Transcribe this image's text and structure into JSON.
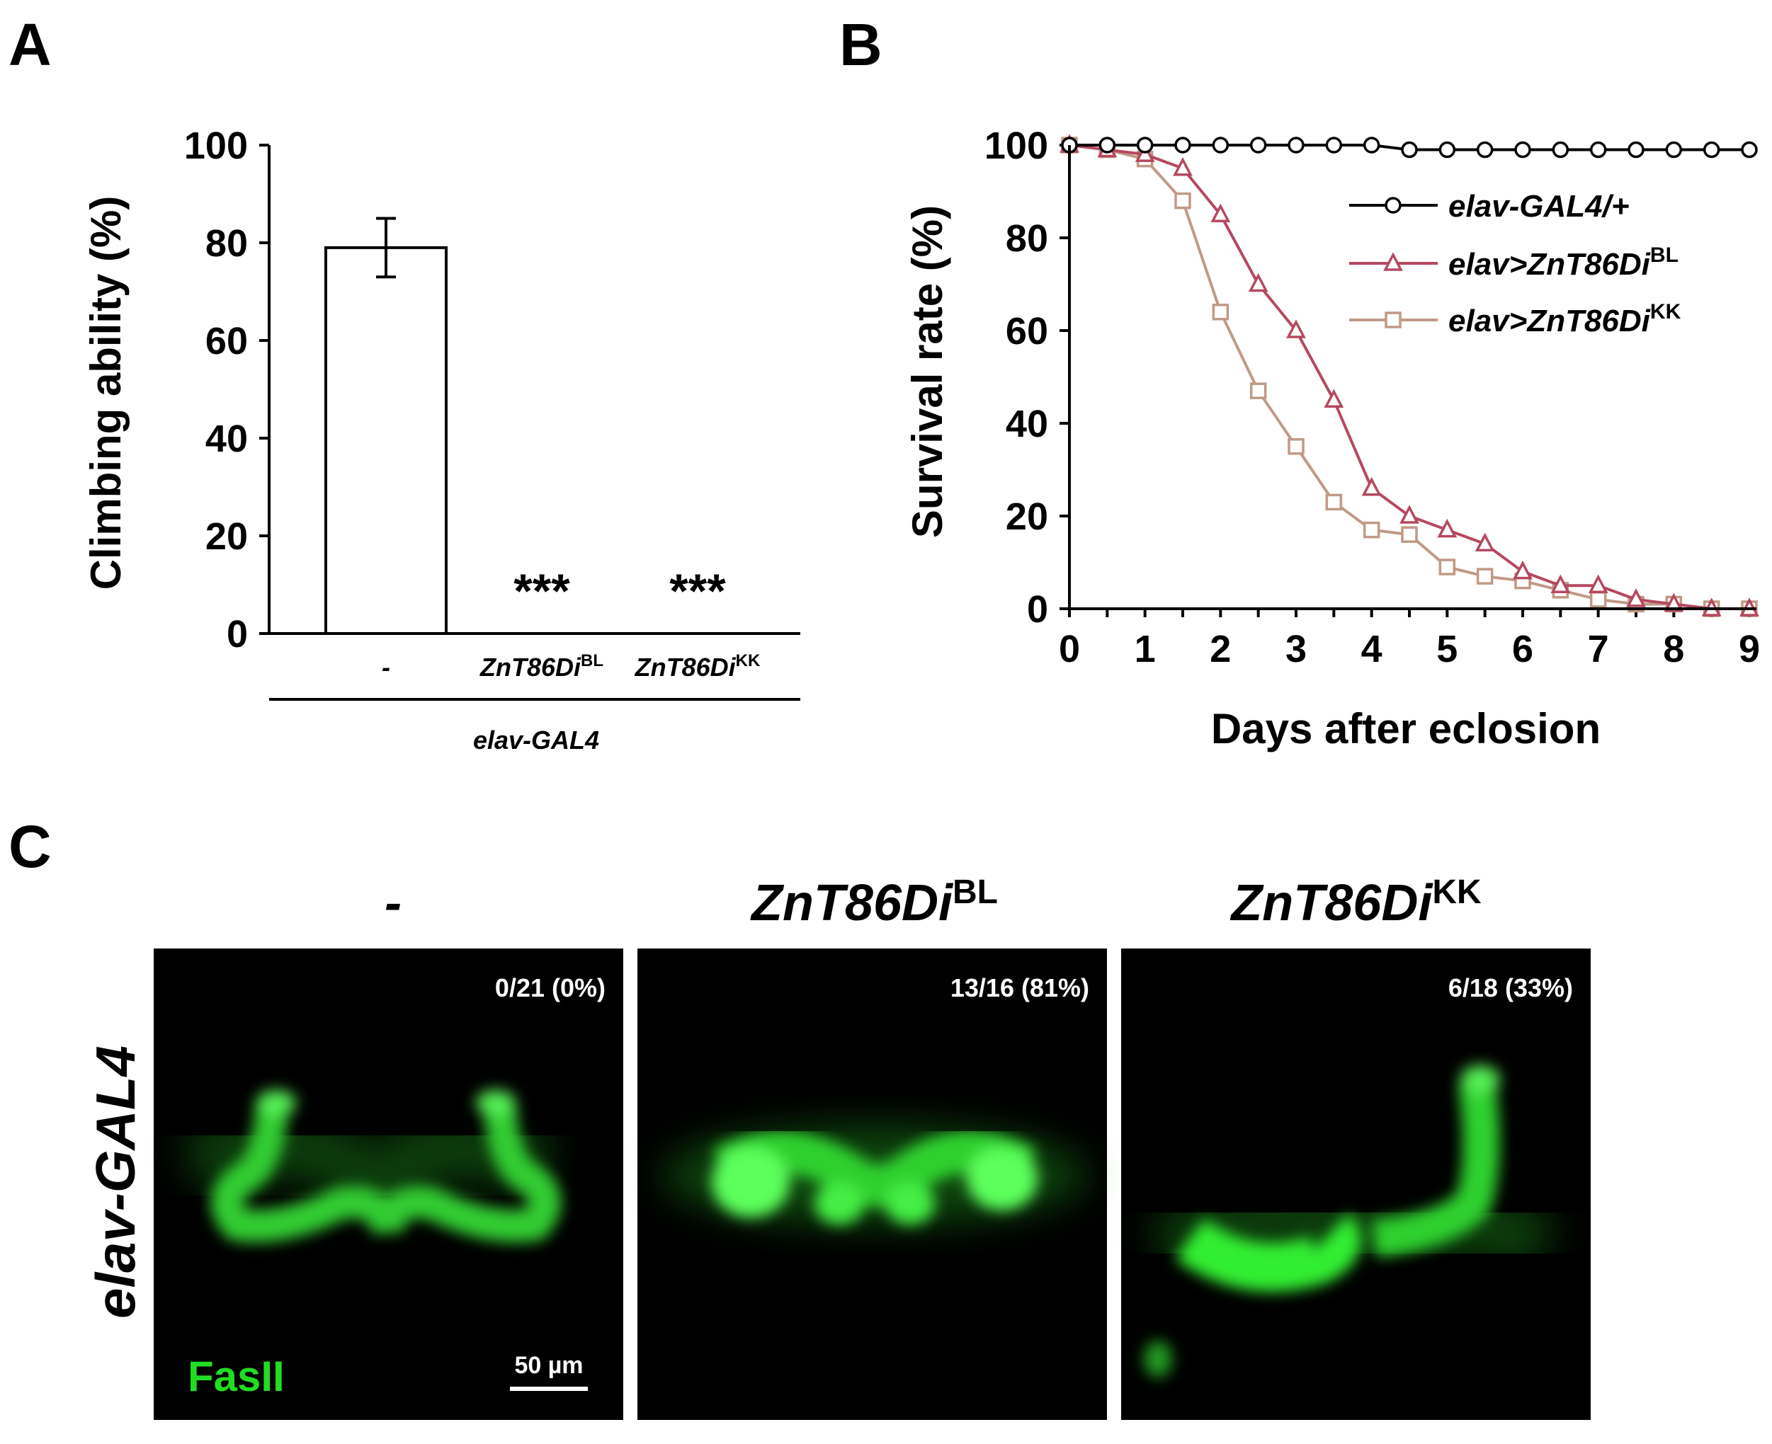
{
  "panels": {
    "a": {
      "letter": "A"
    },
    "b": {
      "letter": "B"
    },
    "c": {
      "letter": "C",
      "row_label": "elav-GAL4",
      "columns": [
        {
          "gene": "-",
          "sup": "",
          "count": "0/21  (0%)"
        },
        {
          "gene": "ZnT86Di",
          "sup": "BL",
          "count": "13/16  (81%)"
        },
        {
          "gene": "ZnT86Di",
          "sup": "KK",
          "count": "6/18  (33%)"
        }
      ],
      "stain_label": "FasII",
      "scale_bar": "50 µm",
      "colors": {
        "background": "#000000",
        "stain": "#22dd22"
      }
    }
  },
  "chart_data": [
    {
      "type": "bar",
      "panel": "A",
      "ylabel": "Climbing ability (%)",
      "ylim": [
        0,
        100
      ],
      "yticks": [
        0,
        20,
        40,
        60,
        80,
        100
      ],
      "categories": [
        {
          "label": "-",
          "sup": ""
        },
        {
          "label": "ZnT86Di",
          "sup": "BL"
        },
        {
          "label": "ZnT86Di",
          "sup": "KK"
        }
      ],
      "values": [
        79,
        0,
        0
      ],
      "errors": [
        6,
        0,
        0
      ],
      "annotations": [
        "",
        "***",
        "***"
      ],
      "group_label": "elav-GAL4",
      "colors": {
        "bar_fill": "#ffffff",
        "bar_edge": "#000000"
      }
    },
    {
      "type": "line",
      "panel": "B",
      "xlabel": "Days after eclosion",
      "ylabel": "Survival rate (%)",
      "xlim": [
        0,
        9
      ],
      "ylim": [
        0,
        100
      ],
      "xticks": [
        0,
        1,
        2,
        3,
        4,
        5,
        6,
        7,
        8,
        9
      ],
      "yticks": [
        0,
        20,
        40,
        60,
        80,
        100
      ],
      "x": [
        0,
        0.5,
        1,
        1.5,
        2,
        2.5,
        3,
        3.5,
        4,
        4.5,
        5,
        5.5,
        6,
        6.5,
        7,
        7.5,
        8,
        8.5,
        9
      ],
      "legend_position": "top-right",
      "series": [
        {
          "name": "elav-GAL4/+",
          "sup": "",
          "marker": "circle",
          "color": "#000000",
          "values": [
            100,
            100,
            100,
            100,
            100,
            100,
            100,
            100,
            100,
            99,
            99,
            99,
            99,
            99,
            99,
            99,
            99,
            99,
            99
          ]
        },
        {
          "name": "elav>ZnT86Di",
          "sup": "BL",
          "marker": "triangle",
          "color": "#b5485f",
          "values": [
            100,
            99,
            98,
            95,
            85,
            70,
            60,
            45,
            26,
            20,
            17,
            14,
            8,
            5,
            5,
            2,
            1,
            0,
            0
          ]
        },
        {
          "name": "elav>ZnT86Di",
          "sup": "KK",
          "marker": "square",
          "color": "#c09a86",
          "values": [
            100,
            99,
            97,
            88,
            64,
            47,
            35,
            23,
            17,
            16,
            9,
            7,
            6,
            4,
            2,
            1,
            1,
            0,
            0
          ]
        }
      ]
    }
  ]
}
